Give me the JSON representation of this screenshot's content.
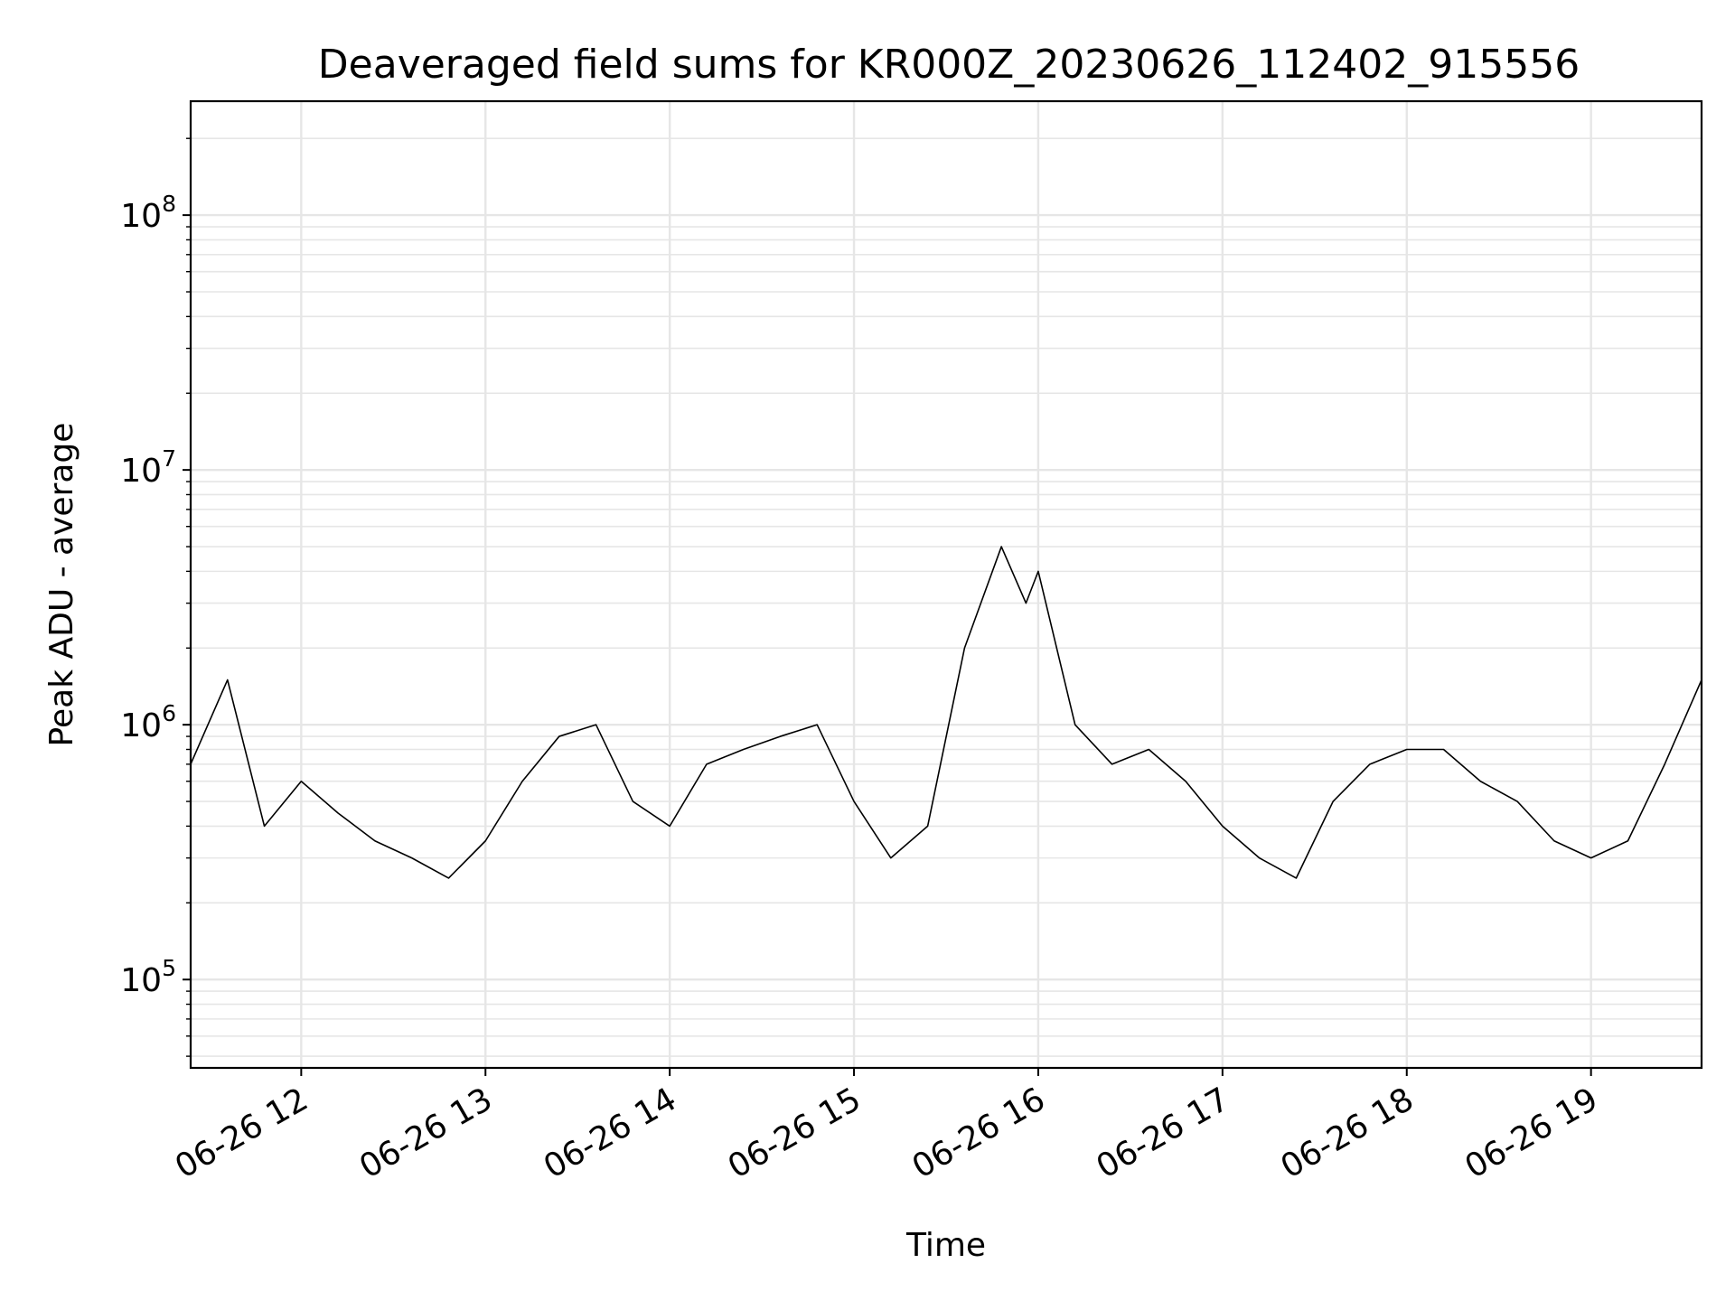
{
  "chart_data": {
    "type": "line",
    "title": "Deaveraged field sums for KR000Z_20230626_112402_915556",
    "xlabel": "Time",
    "ylabel": "Peak ADU - average",
    "x_scale": "time",
    "y_scale": "log",
    "xlim": [
      "2023-06-26 11:24",
      "2023-06-26 19:36"
    ],
    "ylim": [
      45000,
      280000000
    ],
    "x_ticks": [
      {
        "value": "2023-06-26 12:00",
        "label": "06-26 12"
      },
      {
        "value": "2023-06-26 13:00",
        "label": "06-26 13"
      },
      {
        "value": "2023-06-26 14:00",
        "label": "06-26 14"
      },
      {
        "value": "2023-06-26 15:00",
        "label": "06-26 15"
      },
      {
        "value": "2023-06-26 16:00",
        "label": "06-26 16"
      },
      {
        "value": "2023-06-26 17:00",
        "label": "06-26 17"
      },
      {
        "value": "2023-06-26 18:00",
        "label": "06-26 18"
      },
      {
        "value": "2023-06-26 19:00",
        "label": "06-26 19"
      }
    ],
    "y_ticks": [
      {
        "value": 100000,
        "base": "10",
        "exp": "5"
      },
      {
        "value": 1000000,
        "base": "10",
        "exp": "6"
      },
      {
        "value": 10000000,
        "base": "10",
        "exp": "7"
      },
      {
        "value": 100000000,
        "base": "10",
        "exp": "8"
      }
    ],
    "grid": true,
    "legend": "none",
    "line_color": "#000000",
    "grid_color": "#e6e6e6",
    "series": [
      {
        "x": [
          "2023-06-26 11:24",
          "2023-06-26 11:36",
          "2023-06-26 11:48",
          "2023-06-26 12:00",
          "2023-06-26 12:12",
          "2023-06-26 12:24",
          "2023-06-26 12:36",
          "2023-06-26 12:48",
          "2023-06-26 13:00",
          "2023-06-26 13:12",
          "2023-06-26 13:24",
          "2023-06-26 13:36",
          "2023-06-26 13:48",
          "2023-06-26 14:00",
          "2023-06-26 14:12",
          "2023-06-26 14:24",
          "2023-06-26 14:36",
          "2023-06-26 14:48",
          "2023-06-26 15:00",
          "2023-06-26 15:12",
          "2023-06-26 15:24",
          "2023-06-26 15:36",
          "2023-06-26 15:48",
          "2023-06-26 15:56",
          "2023-06-26 16:00",
          "2023-06-26 16:12",
          "2023-06-26 16:24",
          "2023-06-26 16:36",
          "2023-06-26 16:48",
          "2023-06-26 17:00",
          "2023-06-26 17:12",
          "2023-06-26 17:24",
          "2023-06-26 17:36",
          "2023-06-26 17:48",
          "2023-06-26 18:00",
          "2023-06-26 18:12",
          "2023-06-26 18:24",
          "2023-06-26 18:36",
          "2023-06-26 18:48",
          "2023-06-26 19:00",
          "2023-06-26 19:12",
          "2023-06-26 19:24",
          "2023-06-26 19:36"
        ],
        "y": [
          700000,
          1500000,
          400000,
          600000,
          450000,
          350000,
          300000,
          250000,
          350000,
          600000,
          900000,
          1000000,
          500000,
          400000,
          700000,
          800000,
          900000,
          1000000,
          500000,
          300000,
          400000,
          2000000,
          5000000,
          3000000,
          4000000,
          1000000,
          700000,
          800000,
          600000,
          400000,
          300000,
          250000,
          500000,
          700000,
          800000,
          800000,
          600000,
          500000,
          350000,
          300000,
          350000,
          700000,
          1500000
        ]
      }
    ]
  }
}
